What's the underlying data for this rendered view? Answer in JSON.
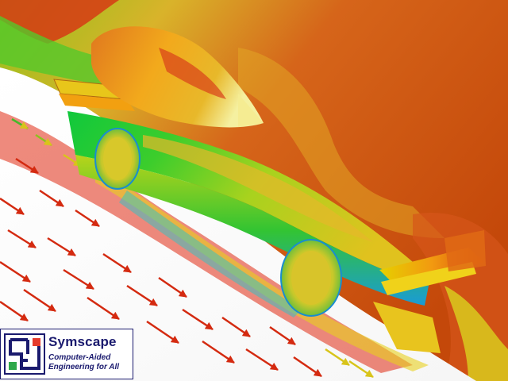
{
  "brand": {
    "name": "Symscape",
    "tagline": "Computer-Aided Engineering for All",
    "colors": {
      "primary": "#1a1a6e",
      "accent_red": "#e53b2c",
      "accent_green": "#2fa84a"
    }
  },
  "scene": {
    "subject": "formula racing car CFD simulation",
    "colormap": [
      "#1a4cff",
      "#00c8ff",
      "#00d23c",
      "#e6e600",
      "#ff8c00",
      "#c84600"
    ],
    "background_color": "#c44a0a"
  }
}
